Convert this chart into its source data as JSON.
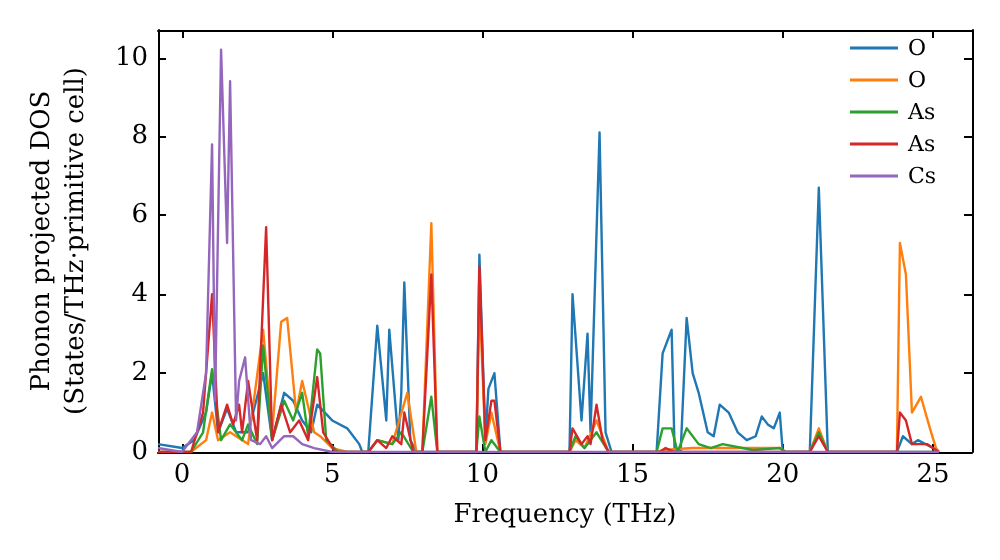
{
  "chart_data": {
    "type": "line",
    "xlabel": "Frequency (THz)",
    "ylabel": "Phonon projected DOS\n(States/THz·primitive cell)",
    "xlim": [
      -0.8,
      26.3
    ],
    "ylim": [
      0,
      10.7
    ],
    "xticks": [
      0,
      5,
      10,
      15,
      20,
      25
    ],
    "yticks": [
      0,
      2,
      4,
      6,
      8,
      10
    ],
    "grid": false,
    "legend": "top right",
    "marker": "none",
    "line_style": "solid",
    "series": [
      {
        "name": "O",
        "color": "#1f77b4",
        "x": [
          -0.8,
          0,
          0.4,
          0.8,
          1.0,
          1.2,
          1.5,
          1.8,
          2.2,
          2.7,
          3.0,
          3.4,
          3.7,
          4.0,
          4.3,
          4.5,
          5.0,
          5.5,
          5.9,
          6.0,
          6.2,
          6.5,
          6.8,
          6.9,
          7.2,
          7.3,
          7.4,
          7.6,
          7.8,
          9.8,
          9.9,
          10.1,
          10.2,
          10.4,
          10.6,
          12.9,
          13.0,
          13.3,
          13.5,
          13.6,
          13.9,
          14.1,
          14.3,
          15.8,
          16.0,
          16.3,
          16.4,
          16.6,
          16.8,
          17.0,
          17.2,
          17.5,
          17.7,
          17.9,
          18.2,
          18.5,
          18.8,
          19.1,
          19.3,
          19.5,
          19.7,
          19.9,
          20.0,
          20.9,
          21.2,
          21.5,
          23.8,
          24.0,
          24.3,
          24.5,
          25.0,
          25.2
        ],
        "values": [
          0.2,
          0.1,
          0.3,
          1.0,
          2.0,
          0.5,
          1.1,
          0.5,
          0.5,
          2.0,
          0.3,
          1.5,
          1.3,
          0.8,
          0.5,
          1.2,
          0.8,
          0.6,
          0.2,
          0,
          0,
          3.2,
          0.8,
          3.1,
          0.3,
          1.5,
          4.3,
          0.3,
          0,
          0,
          5.0,
          0.3,
          1.6,
          2.0,
          0,
          0,
          4.0,
          0.8,
          3.0,
          0.5,
          8.1,
          0.5,
          0,
          0,
          2.5,
          3.1,
          0,
          0,
          3.4,
          2.0,
          1.5,
          0.5,
          0.4,
          1.2,
          1.0,
          0.5,
          0.3,
          0.4,
          0.9,
          0.7,
          0.6,
          1.0,
          0,
          0,
          6.7,
          0,
          0,
          0.4,
          0.2,
          0.3,
          0.1,
          0
        ]
      },
      {
        "name": "O",
        "color": "#ff7f0e",
        "x": [
          -0.8,
          0.3,
          0.8,
          1.0,
          1.2,
          1.6,
          2.2,
          2.7,
          3.0,
          3.3,
          3.5,
          3.8,
          4.0,
          4.4,
          4.6,
          5.0,
          5.5,
          6.2,
          6.5,
          7.0,
          7.5,
          7.8,
          8.0,
          8.3,
          8.5,
          9.8,
          9.9,
          10.1,
          10.3,
          10.6,
          12.9,
          13.1,
          13.4,
          13.8,
          14.2,
          15.8,
          16.0,
          17.0,
          19.9,
          20.1,
          20.9,
          21.2,
          21.5,
          23.8,
          23.9,
          24.1,
          24.3,
          24.6,
          24.9,
          25.1,
          25.2
        ],
        "values": [
          0,
          0,
          0.3,
          1.0,
          0.3,
          0.5,
          0.2,
          3.1,
          0.5,
          3.3,
          3.4,
          1.0,
          1.8,
          0.5,
          0.4,
          0.1,
          0,
          0,
          0.3,
          0.2,
          1.5,
          0,
          0,
          5.8,
          0,
          0,
          4.0,
          0.2,
          1.0,
          0,
          0,
          0.3,
          0.1,
          0.8,
          0,
          0,
          0.05,
          0.1,
          0.1,
          0,
          0,
          0.6,
          0,
          0,
          5.3,
          4.5,
          1.0,
          1.4,
          0.6,
          0.1,
          0
        ]
      },
      {
        "name": "As",
        "color": "#2ca02c",
        "x": [
          -0.8,
          0.3,
          0.7,
          1.0,
          1.3,
          1.6,
          2.0,
          2.2,
          2.5,
          2.7,
          3.0,
          3.4,
          3.7,
          4.0,
          4.2,
          4.5,
          4.6,
          4.8,
          5.2,
          6.2,
          6.5,
          7.0,
          7.3,
          7.7,
          8.0,
          8.3,
          8.5,
          9.8,
          9.9,
          10.1,
          10.3,
          10.6,
          12.9,
          13.1,
          13.4,
          13.8,
          14.2,
          15.8,
          16.0,
          16.3,
          16.5,
          16.8,
          17.2,
          17.6,
          18.0,
          19.0,
          19.9,
          20.1,
          20.9,
          21.2,
          21.5,
          25.2
        ],
        "values": [
          0,
          0,
          0.5,
          2.1,
          0.3,
          0.7,
          0.3,
          0.7,
          0.2,
          2.7,
          0.3,
          1.3,
          0.8,
          1.5,
          0.4,
          2.6,
          2.5,
          0.3,
          0,
          0,
          0.3,
          0.2,
          0.5,
          0,
          0,
          1.4,
          0,
          0,
          0.9,
          0,
          0.3,
          0,
          0,
          0.4,
          0.1,
          0.5,
          0,
          0,
          0.6,
          0.6,
          0,
          0.6,
          0.2,
          0.1,
          0.2,
          0.05,
          0.1,
          0,
          0,
          0.5,
          0,
          0
        ]
      },
      {
        "name": "As",
        "color": "#d62728",
        "x": [
          -0.8,
          0.3,
          0.7,
          1.0,
          1.2,
          1.5,
          1.7,
          1.9,
          2.0,
          2.2,
          2.5,
          2.8,
          3.0,
          3.3,
          3.6,
          3.9,
          4.2,
          4.5,
          4.7,
          5.1,
          6.2,
          6.5,
          6.8,
          7.0,
          7.3,
          7.4,
          7.7,
          8.0,
          8.3,
          8.5,
          9.8,
          9.9,
          10.1,
          10.3,
          10.4,
          10.6,
          12.9,
          13.0,
          13.3,
          13.5,
          13.6,
          13.8,
          14.0,
          14.2,
          15.9,
          16.1,
          16.4,
          20.9,
          21.2,
          21.5,
          23.8,
          23.9,
          24.1,
          24.3,
          24.8,
          25.2
        ],
        "values": [
          0,
          0,
          1.0,
          4.0,
          0.5,
          1.2,
          0.7,
          1.2,
          0.5,
          1.8,
          0.3,
          5.7,
          0.3,
          1.2,
          0.5,
          0.8,
          0.3,
          1.9,
          0.5,
          0,
          0,
          0.3,
          0.1,
          0.4,
          0.2,
          1.0,
          0,
          0,
          4.5,
          0,
          0,
          4.7,
          0.3,
          1.3,
          1.3,
          0,
          0,
          0.6,
          0.2,
          0.4,
          0.2,
          1.2,
          0.3,
          0,
          0,
          0.1,
          0,
          0,
          0.4,
          0,
          0,
          1.0,
          0.8,
          0.2,
          0.2,
          0
        ]
      },
      {
        "name": "Cs",
        "color": "#9467bd",
        "x": [
          -0.8,
          0,
          0.5,
          0.8,
          1.0,
          1.1,
          1.3,
          1.5,
          1.6,
          1.8,
          1.9,
          2.1,
          2.3,
          2.6,
          2.8,
          3.0,
          3.4,
          3.7,
          4.0,
          4.4,
          5.0,
          25.2
        ],
        "values": [
          0.1,
          0,
          0.5,
          2.0,
          7.8,
          1.3,
          10.2,
          5.3,
          9.4,
          0.8,
          1.8,
          2.4,
          0.3,
          0.2,
          0.4,
          0.1,
          0.4,
          0.4,
          0.2,
          0.1,
          0,
          0
        ]
      }
    ]
  }
}
